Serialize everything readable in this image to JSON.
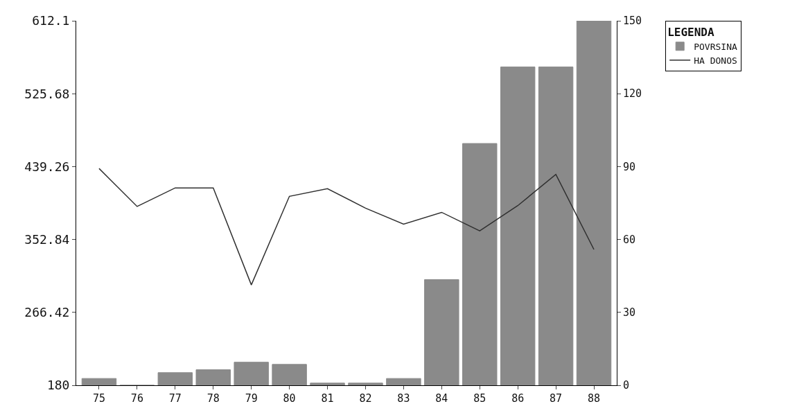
{
  "chart_data": {
    "type": "bar",
    "categories": [
      "75",
      "76",
      "77",
      "78",
      "79",
      "80",
      "81",
      "82",
      "83",
      "84",
      "85",
      "86",
      "87",
      "88"
    ],
    "series": [
      {
        "name": "POVRSINA",
        "axis": "y2",
        "color": "#8a8a8a",
        "values": [
          2.8,
          0,
          5.2,
          6.4,
          9.5,
          8.6,
          0.9,
          0.9,
          2.8,
          43.5,
          99.5,
          131,
          131,
          150
        ]
      },
      {
        "name": "HA DONOS",
        "type": "line",
        "axis": "y",
        "color": "#303030",
        "values": [
          437,
          392,
          414,
          414,
          299,
          404,
          413,
          390,
          371,
          385,
          363,
          393,
          430,
          341
        ]
      }
    ],
    "ylim": [
      180,
      612.1
    ],
    "yticks": [
      180,
      266.42,
      352.84,
      439.26,
      525.68,
      612.1
    ],
    "y2lim": [
      0,
      150
    ],
    "y2ticks": [
      0,
      30,
      60,
      90,
      120,
      150
    ],
    "legend_title": "LEGENDA",
    "legend": "top right",
    "marker": "none",
    "line_style": "solid"
  }
}
